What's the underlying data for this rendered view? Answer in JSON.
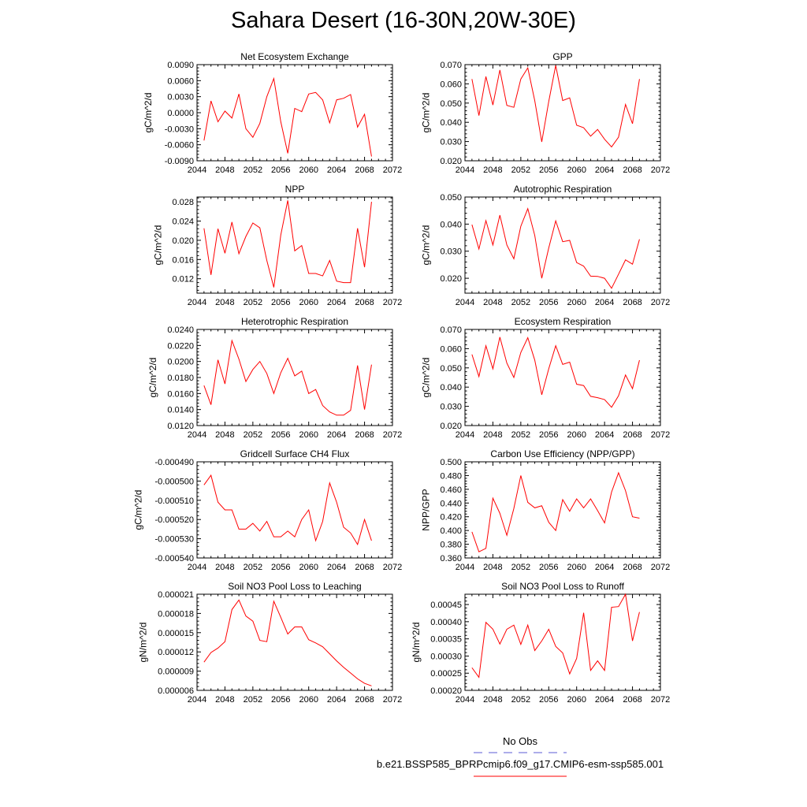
{
  "title": "Sahara Desert (16-30N,20W-30E)",
  "colors": {
    "series": "#ff0000",
    "obs": "#5b5bd6",
    "axis": "#000000"
  },
  "legend": {
    "obs_label": "No Obs",
    "model_label": "b.e21.BSSP585_BPRPcmip6.f09_g17.CMIP6-esm-ssp585.001"
  },
  "chart_data": [
    {
      "type": "line",
      "title": "Net Ecosystem Exchange",
      "ylabel": "gC/m^2/d",
      "xlim": [
        2044,
        2072
      ],
      "xticks": [
        "2044",
        "2048",
        "2052",
        "2056",
        "2060",
        "2064",
        "2068",
        "2072"
      ],
      "ylim": [
        -0.009,
        0.009
      ],
      "yticks": [
        "-0.0090",
        "-0.0060",
        "-0.0030",
        "0.0000",
        "0.0030",
        "0.0060",
        "0.0090"
      ],
      "x": [
        2045,
        2046,
        2047,
        2048,
        2049,
        2050,
        2051,
        2052,
        2053,
        2054,
        2055,
        2056,
        2057,
        2058,
        2059,
        2060,
        2061,
        2062,
        2063,
        2064,
        2065,
        2066,
        2067,
        2068,
        2069
      ],
      "values": [
        -0.0052,
        0.0022,
        -0.0017,
        0.0003,
        -0.001,
        0.0035,
        -0.003,
        -0.0046,
        -0.002,
        0.003,
        0.0064,
        -0.0017,
        -0.0076,
        0.0008,
        0.0002,
        0.0035,
        0.0038,
        0.0024,
        -0.0019,
        0.0024,
        0.0027,
        0.0034,
        -0.0027,
        -0.0003,
        -0.0082
      ]
    },
    {
      "type": "line",
      "title": "GPP",
      "ylabel": "gC/m^2/d",
      "xlim": [
        2044,
        2072
      ],
      "xticks": [
        "2044",
        "2048",
        "2052",
        "2056",
        "2060",
        "2064",
        "2068",
        "2072"
      ],
      "ylim": [
        0.02,
        0.07
      ],
      "yticks": [
        "0.020",
        "0.030",
        "0.040",
        "0.050",
        "0.060",
        "0.070"
      ],
      "x": [
        2045,
        2046,
        2047,
        2048,
        2049,
        2050,
        2051,
        2052,
        2053,
        2054,
        2055,
        2056,
        2057,
        2058,
        2059,
        2060,
        2061,
        2062,
        2063,
        2064,
        2065,
        2066,
        2067,
        2068,
        2069
      ],
      "values": [
        0.0625,
        0.0435,
        0.0638,
        0.049,
        0.0672,
        0.0488,
        0.0478,
        0.0625,
        0.0683,
        0.0512,
        0.0298,
        0.0508,
        0.0696,
        0.0513,
        0.0527,
        0.0385,
        0.0372,
        0.0328,
        0.0363,
        0.0312,
        0.0272,
        0.0323,
        0.0493,
        0.0393,
        0.0625
      ]
    },
    {
      "type": "line",
      "title": "NPP",
      "ylabel": "gC/m^2/d",
      "xlim": [
        2044,
        2072
      ],
      "xticks": [
        "2044",
        "2048",
        "2052",
        "2056",
        "2060",
        "2064",
        "2068",
        "2072"
      ],
      "ylim": [
        0.009,
        0.029
      ],
      "yticks": [
        "0.012",
        "0.016",
        "0.020",
        "0.024",
        "0.028"
      ],
      "x": [
        2045,
        2046,
        2047,
        2048,
        2049,
        2050,
        2051,
        2052,
        2053,
        2054,
        2055,
        2056,
        2057,
        2058,
        2059,
        2060,
        2061,
        2062,
        2063,
        2064,
        2065,
        2066,
        2067,
        2068,
        2069
      ],
      "values": [
        0.0225,
        0.0128,
        0.0224,
        0.0173,
        0.0238,
        0.0172,
        0.0208,
        0.0236,
        0.0226,
        0.0158,
        0.0102,
        0.0211,
        0.0283,
        0.0178,
        0.0189,
        0.0131,
        0.0131,
        0.0126,
        0.0158,
        0.0115,
        0.0112,
        0.0112,
        0.0225,
        0.0144,
        0.028
      ]
    },
    {
      "type": "line",
      "title": "Autotrophic Respiration",
      "ylabel": "gC/m^2/d",
      "xlim": [
        2044,
        2072
      ],
      "xticks": [
        "2044",
        "2048",
        "2052",
        "2056",
        "2060",
        "2064",
        "2068",
        "2072"
      ],
      "ylim": [
        0.0145,
        0.05
      ],
      "yticks": [
        "0.020",
        "0.030",
        "0.040",
        "0.050"
      ],
      "x": [
        2045,
        2046,
        2047,
        2048,
        2049,
        2050,
        2051,
        2052,
        2053,
        2054,
        2055,
        2056,
        2057,
        2058,
        2059,
        2060,
        2061,
        2062,
        2063,
        2064,
        2065,
        2066,
        2067,
        2068,
        2069
      ],
      "values": [
        0.0398,
        0.0308,
        0.0413,
        0.0323,
        0.0433,
        0.0323,
        0.0272,
        0.0392,
        0.0457,
        0.0358,
        0.02,
        0.0312,
        0.0412,
        0.0335,
        0.034,
        0.0258,
        0.0245,
        0.0208,
        0.0207,
        0.02,
        0.0163,
        0.0215,
        0.0268,
        0.0252,
        0.0344
      ]
    },
    {
      "type": "line",
      "title": "Heterotrophic Respiration",
      "ylabel": "gC/m^2/d",
      "xlim": [
        2044,
        2072
      ],
      "xticks": [
        "2044",
        "2048",
        "2052",
        "2056",
        "2060",
        "2064",
        "2068",
        "2072"
      ],
      "ylim": [
        0.012,
        0.024
      ],
      "yticks": [
        "0.0120",
        "0.0140",
        "0.0160",
        "0.0180",
        "0.0200",
        "0.0220",
        "0.0240"
      ],
      "x": [
        2045,
        2046,
        2047,
        2048,
        2049,
        2050,
        2051,
        2052,
        2053,
        2054,
        2055,
        2056,
        2057,
        2058,
        2059,
        2060,
        2061,
        2062,
        2063,
        2064,
        2065,
        2066,
        2067,
        2068,
        2069
      ],
      "values": [
        0.017,
        0.0146,
        0.0202,
        0.0172,
        0.0226,
        0.0203,
        0.0175,
        0.019,
        0.02,
        0.0185,
        0.016,
        0.0186,
        0.0204,
        0.0182,
        0.0188,
        0.016,
        0.0165,
        0.0145,
        0.0137,
        0.0133,
        0.0133,
        0.0139,
        0.0195,
        0.014,
        0.0196
      ]
    },
    {
      "type": "line",
      "title": "Ecosystem Respiration",
      "ylabel": "gC/m^2/d",
      "xlim": [
        2044,
        2072
      ],
      "xticks": [
        "2044",
        "2048",
        "2052",
        "2056",
        "2060",
        "2064",
        "2068",
        "2072"
      ],
      "ylim": [
        0.02,
        0.07
      ],
      "yticks": [
        "0.020",
        "0.030",
        "0.040",
        "0.050",
        "0.060",
        "0.070"
      ],
      "x": [
        2045,
        2046,
        2047,
        2048,
        2049,
        2050,
        2051,
        2052,
        2053,
        2054,
        2055,
        2056,
        2057,
        2058,
        2059,
        2060,
        2061,
        2062,
        2063,
        2064,
        2065,
        2066,
        2067,
        2068,
        2069
      ],
      "values": [
        0.057,
        0.0455,
        0.0615,
        0.0495,
        0.066,
        0.0525,
        0.045,
        0.058,
        0.0657,
        0.054,
        0.036,
        0.0495,
        0.0615,
        0.0518,
        0.053,
        0.0415,
        0.0408,
        0.0352,
        0.0345,
        0.0335,
        0.0295,
        0.0355,
        0.0463,
        0.0392,
        0.054
      ]
    },
    {
      "type": "line",
      "title": "Gridcell Surface CH4 Flux",
      "ylabel": "gC/m^2/d",
      "xlim": [
        2044,
        2072
      ],
      "xticks": [
        "2044",
        "2048",
        "2052",
        "2056",
        "2060",
        "2064",
        "2068",
        "2072"
      ],
      "ylim": [
        -0.00054,
        -0.00049
      ],
      "yticks": [
        "-0.000540",
        "-0.000530",
        "-0.000520",
        "-0.000510",
        "-0.000500",
        "-0.000490"
      ],
      "x": [
        2045,
        2046,
        2047,
        2048,
        2049,
        2050,
        2051,
        2052,
        2053,
        2054,
        2055,
        2056,
        2057,
        2058,
        2059,
        2060,
        2061,
        2062,
        2063,
        2064,
        2065,
        2066,
        2067,
        2068,
        2069
      ],
      "values": [
        -0.000502,
        -0.000497,
        -0.000511,
        -0.000515,
        -0.000515,
        -0.000525,
        -0.000525,
        -0.000522,
        -0.000526,
        -0.000521,
        -0.000529,
        -0.000529,
        -0.000526,
        -0.000529,
        -0.00052,
        -0.000515,
        -0.000531,
        -0.000521,
        -0.000501,
        -0.000511,
        -0.000524,
        -0.000527,
        -0.000533,
        -0.00052,
        -0.000531
      ]
    },
    {
      "type": "line",
      "title": "Carbon Use Efficiency (NPP/GPP)",
      "ylabel": "NPP/GPP",
      "xlim": [
        2044,
        2072
      ],
      "xticks": [
        "2044",
        "2048",
        "2052",
        "2056",
        "2060",
        "2064",
        "2068",
        "2072"
      ],
      "ylim": [
        0.36,
        0.5
      ],
      "yticks": [
        "0.360",
        "0.380",
        "0.400",
        "0.420",
        "0.440",
        "0.460",
        "0.480",
        "0.500"
      ],
      "x": [
        2045,
        2046,
        2047,
        2048,
        2049,
        2050,
        2051,
        2052,
        2053,
        2054,
        2055,
        2056,
        2057,
        2058,
        2059,
        2060,
        2061,
        2062,
        2063,
        2064,
        2065,
        2066,
        2067,
        2068,
        2069
      ],
      "values": [
        0.398,
        0.369,
        0.374,
        0.447,
        0.425,
        0.393,
        0.432,
        0.48,
        0.441,
        0.433,
        0.436,
        0.412,
        0.4,
        0.445,
        0.428,
        0.446,
        0.433,
        0.446,
        0.429,
        0.411,
        0.456,
        0.484,
        0.458,
        0.42,
        0.418
      ]
    },
    {
      "type": "line",
      "title": "Soil NO3 Pool Loss to Leaching",
      "ylabel": "gN/m^2/d",
      "xlim": [
        2044,
        2072
      ],
      "xticks": [
        "2044",
        "2048",
        "2052",
        "2056",
        "2060",
        "2064",
        "2068",
        "2072"
      ],
      "ylim": [
        6e-06,
        2.1e-05
      ],
      "yticks": [
        "0.000006",
        "0.000009",
        "0.000012",
        "0.000015",
        "0.000018",
        "0.000021"
      ],
      "x": [
        2045,
        2046,
        2047,
        2048,
        2049,
        2050,
        2051,
        2052,
        2053,
        2054,
        2055,
        2056,
        2057,
        2058,
        2059,
        2060,
        2061,
        2062,
        2063,
        2064,
        2065,
        2066,
        2067,
        2068,
        2069
      ],
      "values": [
        1.04e-05,
        1.19e-05,
        1.26e-05,
        1.36e-05,
        1.86e-05,
        2.01e-05,
        1.76e-05,
        1.68e-05,
        1.38e-05,
        1.36e-05,
        1.99e-05,
        1.74e-05,
        1.48e-05,
        1.59e-05,
        1.59e-05,
        1.39e-05,
        1.34e-05,
        1.28e-05,
        1.17e-05,
        1.06e-05,
        9.6e-06,
        8.7e-06,
        7.8e-06,
        7.1e-06,
        6.7e-06
      ]
    },
    {
      "type": "line",
      "title": "Soil NO3 Pool Loss to Runoff",
      "ylabel": "gN/m^2/d",
      "xlim": [
        2044,
        2072
      ],
      "xticks": [
        "2044",
        "2048",
        "2052",
        "2056",
        "2060",
        "2064",
        "2068",
        "2072"
      ],
      "ylim": [
        0.0002,
        0.00048
      ],
      "yticks": [
        "0.00020",
        "0.00025",
        "0.00030",
        "0.00035",
        "0.00040",
        "0.00045"
      ],
      "x": [
        2045,
        2046,
        2047,
        2048,
        2049,
        2050,
        2051,
        2052,
        2053,
        2054,
        2055,
        2056,
        2057,
        2058,
        2059,
        2060,
        2061,
        2062,
        2063,
        2064,
        2065,
        2066,
        2067,
        2068,
        2069
      ],
      "values": [
        0.000266,
        0.000238,
        0.000398,
        0.000378,
        0.000335,
        0.000378,
        0.00039,
        0.000334,
        0.00039,
        0.000316,
        0.000344,
        0.000378,
        0.000328,
        0.000309,
        0.000248,
        0.000293,
        0.000426,
        0.000258,
        0.000286,
        0.000258,
        0.000442,
        0.000444,
        0.00048,
        0.000344,
        0.000428
      ]
    }
  ]
}
